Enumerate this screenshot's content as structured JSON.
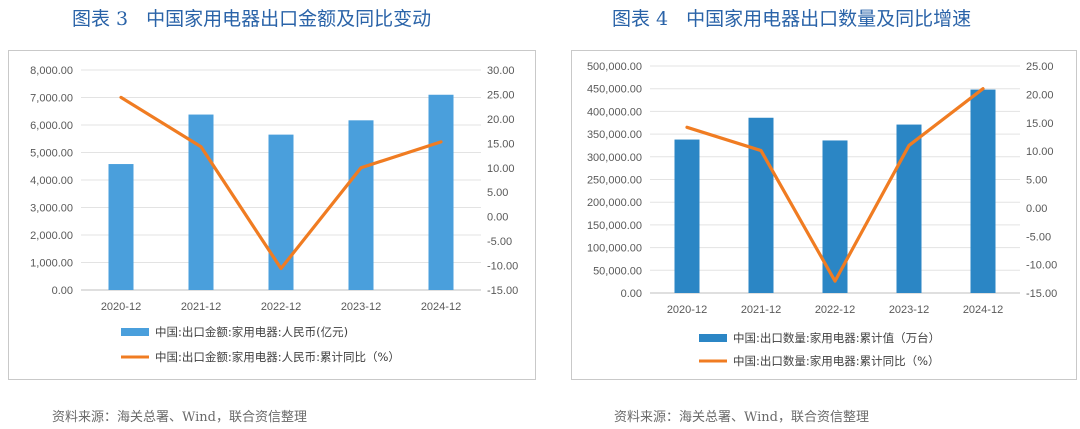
{
  "figures": [
    {
      "number": "图表 3",
      "title": "中国家用电器出口金额及同比变动",
      "source": "资料来源：海关总署、Wind，联合资信整理"
    },
    {
      "number": "图表 4",
      "title": "中国家用电器出口数量及同比增速",
      "source": "资料来源：海关总署、Wind，联合资信整理"
    }
  ],
  "chart_data": [
    {
      "type": "bar",
      "categories": [
        "2020-12",
        "2021-12",
        "2022-12",
        "2023-12",
        "2024-12"
      ],
      "series": [
        {
          "name": "中国:出口金额:家用电器:人民币(亿元)",
          "type": "bar",
          "axis": "left",
          "color": "#4a9fdc",
          "values": [
            4580,
            6380,
            5650,
            6170,
            7100
          ]
        },
        {
          "name": "中国:出口金额:家用电器:人民币:累计同比（%）",
          "type": "line",
          "axis": "right",
          "color": "#f07c22",
          "values": [
            24.4,
            14.3,
            -10.6,
            10.0,
            15.3
          ]
        }
      ],
      "ylim": [
        0,
        8000
      ],
      "y2lim": [
        -15,
        30
      ],
      "yticks": [
        "0.00",
        "1,000.00",
        "2,000.00",
        "3,000.00",
        "4,000.00",
        "5,000.00",
        "6,000.00",
        "7,000.00",
        "8,000.00"
      ],
      "y2ticks": [
        "-15.00",
        "-10.00",
        "-5.00",
        "0.00",
        "5.00",
        "10.00",
        "15.00",
        "20.00",
        "25.00",
        "30.00"
      ],
      "grid": true,
      "legend": "bottom"
    },
    {
      "type": "bar",
      "categories": [
        "2020-12",
        "2021-12",
        "2022-12",
        "2023-12",
        "2024-12"
      ],
      "series": [
        {
          "name": "中国:出口数量:家用电器:累计值（万台）",
          "type": "bar",
          "axis": "left",
          "color": "#2b86c5",
          "values": [
            338000,
            386000,
            336000,
            371000,
            448000
          ]
        },
        {
          "name": "中国:出口数量:家用电器:累计同比（%）",
          "type": "line",
          "axis": "right",
          "color": "#f07c22",
          "values": [
            14.2,
            10.1,
            -12.9,
            11.0,
            21.0
          ]
        }
      ],
      "ylim": [
        0,
        500000
      ],
      "y2lim": [
        -15,
        25
      ],
      "yticks": [
        "0.00",
        "50,000.00",
        "100,000.00",
        "150,000.00",
        "200,000.00",
        "250,000.00",
        "300,000.00",
        "350,000.00",
        "400,000.00",
        "450,000.00",
        "500,000.00"
      ],
      "y2ticks": [
        "-15.00",
        "-10.00",
        "-5.00",
        "0.00",
        "5.00",
        "10.00",
        "15.00",
        "20.00",
        "25.00"
      ],
      "grid": true,
      "legend": "bottom"
    }
  ]
}
